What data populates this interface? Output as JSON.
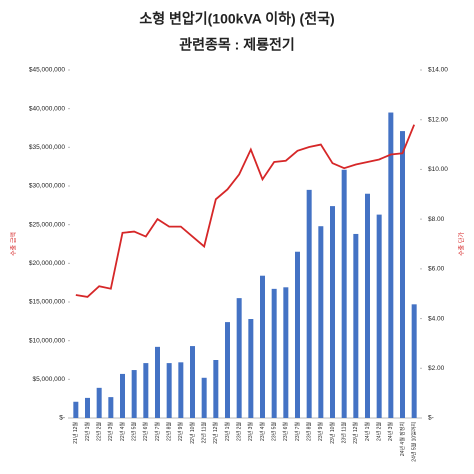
{
  "chart_data": {
    "type": "bar-line",
    "title": "소형 변압기(100kVA 이하) (전국)",
    "subtitle": "관련종목 : 제룡전기",
    "y_label": "수출 금액",
    "y2_label": "수출 단가",
    "categories": [
      "21년 12월",
      "22년 1월",
      "22년 2월",
      "22년 3월",
      "22년 4월",
      "22년 5월",
      "22년 6월",
      "22년 7월",
      "22년 8월",
      "22년 9월",
      "22년 10월",
      "22년 11월",
      "22년 12월",
      "23년 1월",
      "23년 2월",
      "23년 3월",
      "23년 4월",
      "23년 5월",
      "23년 6월",
      "23년 7월",
      "23년 8월",
      "23년 9월",
      "23년 10월",
      "23년 11월",
      "23년 12월",
      "24년 1월",
      "24년 2월",
      "24년 3월",
      "24년 4월 잠정치",
      "24년 5월 10일까지"
    ],
    "series": [
      {
        "name": "수출 금액",
        "type": "bar",
        "color": "#4472c4",
        "values": [
          2100000,
          2600000,
          3900000,
          2700000,
          5700000,
          6200000,
          7100000,
          9200000,
          7100000,
          7200000,
          9300000,
          5200000,
          7500000,
          12400000,
          15500000,
          12800000,
          18400000,
          16700000,
          16900000,
          21500000,
          29500000,
          24800000,
          27400000,
          32100000,
          23800000,
          29000000,
          26300000,
          39500000,
          37100000,
          14700000
        ]
      },
      {
        "name": "수출 단가",
        "type": "line",
        "axis": "y2",
        "color": "#d62728",
        "values": [
          4.95,
          4.87,
          5.3,
          5.2,
          7.45,
          7.5,
          7.3,
          8.0,
          7.7,
          7.7,
          7.3,
          6.9,
          8.8,
          9.2,
          9.8,
          10.8,
          9.6,
          10.3,
          10.35,
          10.75,
          10.9,
          11.0,
          10.25,
          10.05,
          10.2,
          10.3,
          10.4,
          10.6,
          10.65,
          11.8
        ]
      }
    ],
    "ylim": [
      0,
      45000000
    ],
    "yticks": [
      {
        "value": 0,
        "label": "$-"
      },
      {
        "value": 5000000,
        "label": "$5,000,000"
      },
      {
        "value": 10000000,
        "label": "$10,000,000"
      },
      {
        "value": 15000000,
        "label": "$15,000,000"
      },
      {
        "value": 20000000,
        "label": "$20,000,000"
      },
      {
        "value": 25000000,
        "label": "$25,000,000"
      },
      {
        "value": 30000000,
        "label": "$30,000,000"
      },
      {
        "value": 35000000,
        "label": "$35,000,000"
      },
      {
        "value": 40000000,
        "label": "$40,000,000"
      },
      {
        "value": 45000000,
        "label": "$45,000,000"
      }
    ],
    "y2lim": [
      0,
      14
    ],
    "y2ticks": [
      {
        "value": 0,
        "label": "$-"
      },
      {
        "value": 2,
        "label": "$2.00"
      },
      {
        "value": 4,
        "label": "$4.00"
      },
      {
        "value": 6,
        "label": "$6.00"
      },
      {
        "value": 8,
        "label": "$8.00"
      },
      {
        "value": 10,
        "label": "$10.00"
      },
      {
        "value": 12,
        "label": "$12.00"
      },
      {
        "value": 14,
        "label": "$14.00"
      }
    ]
  }
}
